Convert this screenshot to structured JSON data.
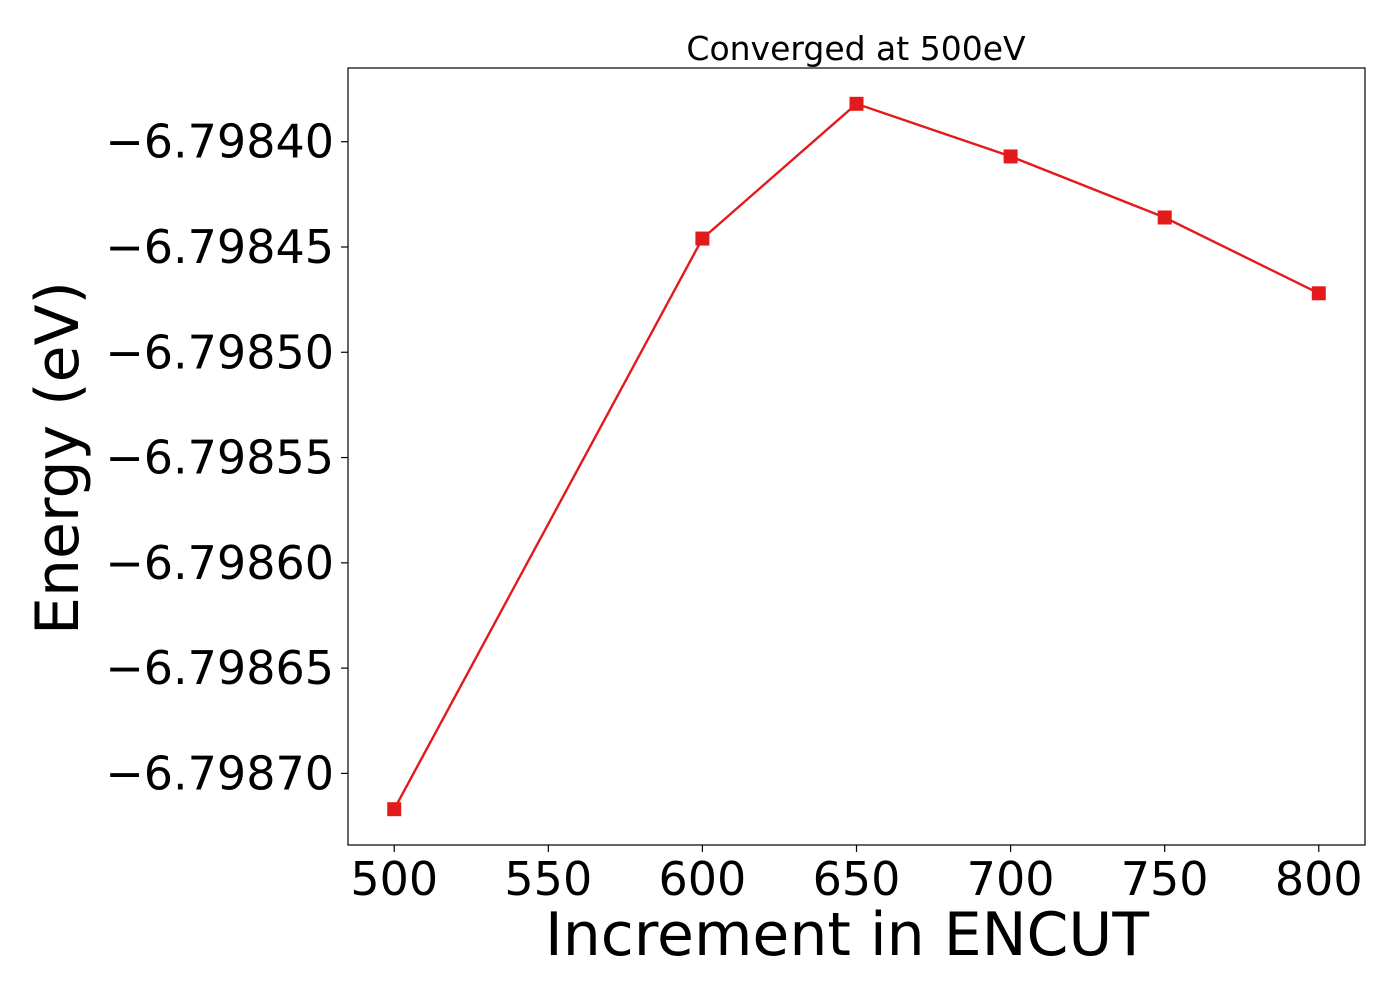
{
  "chart_data": {
    "type": "line",
    "title": "Converged at 500eV",
    "xlabel": "Increment in ENCUT",
    "ylabel": "Energy (eV)",
    "x": [
      500,
      600,
      650,
      700,
      750,
      800
    ],
    "series": [
      {
        "values": [
          -6.798717,
          -6.798446,
          -6.798382,
          -6.798407,
          -6.798436,
          -6.798472
        ],
        "color": "#e31a1c",
        "marker": "square"
      }
    ],
    "xlim": [
      485,
      815
    ],
    "ylim": [
      -6.798734,
      -6.798365
    ],
    "xticks": [
      500,
      550,
      600,
      650,
      700,
      750,
      800
    ],
    "xtick_labels": [
      "500",
      "550",
      "600",
      "650",
      "700",
      "750",
      "800"
    ],
    "yticks": [
      -6.7984,
      -6.79845,
      -6.7985,
      -6.79855,
      -6.7986,
      -6.79865,
      -6.7987
    ],
    "ytick_labels": [
      "−6.79840",
      "−6.79845",
      "−6.79850",
      "−6.79855",
      "−6.79860",
      "−6.79865",
      "−6.79870"
    ],
    "grid": false,
    "legend": "none"
  }
}
